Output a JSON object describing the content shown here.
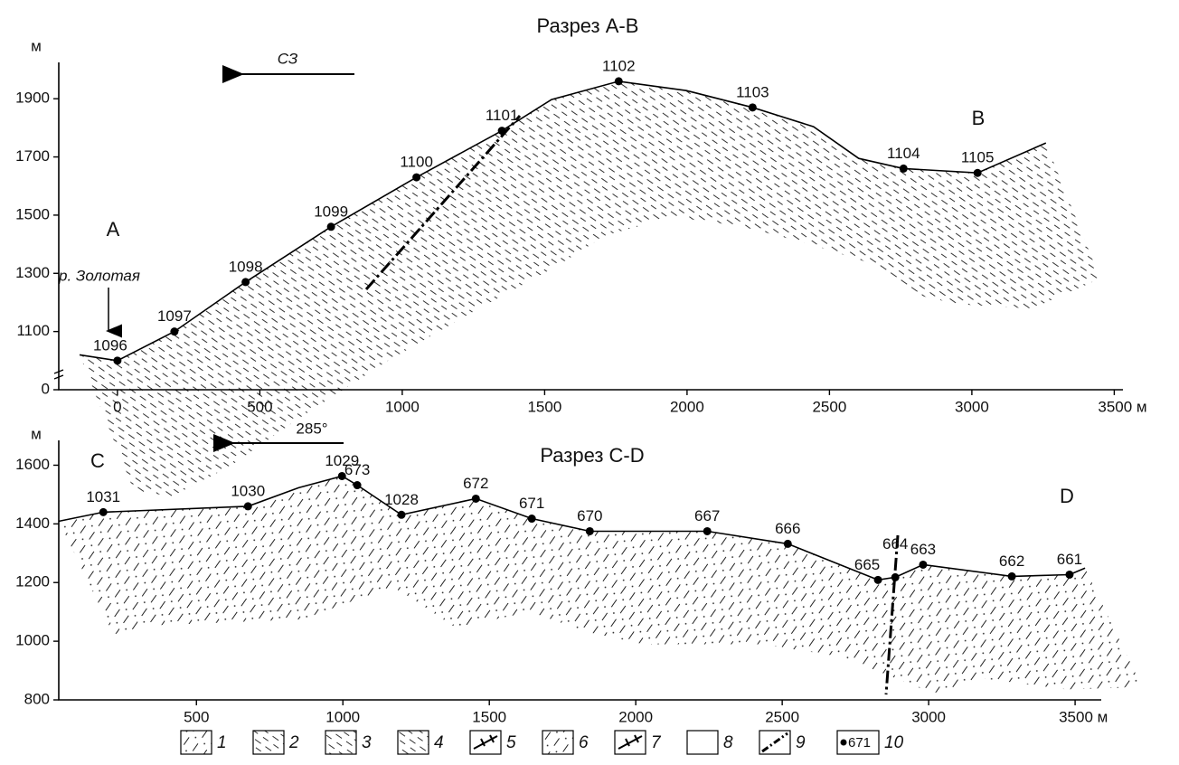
{
  "chart_data": [
    {
      "type": "line",
      "title": "Разрез А-В",
      "y_unit": "м",
      "direction_label": "СЗ",
      "end_labels": [
        "A",
        "B"
      ],
      "river_label": "р. Золотая",
      "color": "#000000",
      "x": [
        -133,
        0,
        200,
        450,
        750,
        1050,
        1350,
        1524,
        1760,
        1998,
        2230,
        2444,
        2603,
        2760,
        3020,
        3260
      ],
      "values": [
        1020,
        1000,
        1100,
        1270,
        1460,
        1630,
        1790,
        1897,
        1960,
        1928,
        1870,
        1804,
        1695,
        1660,
        1645,
        1748
      ],
      "point_labels": [
        null,
        "1096",
        "1097",
        "1098",
        "1099",
        "1100",
        "1101",
        null,
        "1102",
        null,
        "1103",
        null,
        null,
        "1104",
        "1105",
        null
      ],
      "xlim": [
        -206,
        3540
      ],
      "ylim": [
        900,
        2000
      ],
      "y_axis_break": true,
      "xticks": [
        0,
        500,
        1000,
        1500,
        2000,
        2500,
        3000,
        {
          "value": 3500,
          "label": "3500 м"
        }
      ],
      "yticks": [
        0,
        1100,
        1300,
        1500,
        1700,
        1900
      ]
    },
    {
      "type": "line",
      "title": "Разрез C-D",
      "y_unit": "м",
      "direction_label": "285°",
      "end_labels": [
        "C",
        "D"
      ],
      "color": "#000000",
      "x": [
        31,
        182,
        676,
        849,
        997,
        1049,
        1200,
        1454,
        1645,
        1843,
        2244,
        2519,
        2827,
        2886,
        2981,
        3284,
        3481,
        3534
      ],
      "values": [
        1409,
        1440,
        1460,
        1523,
        1563,
        1532,
        1431,
        1486,
        1418,
        1375,
        1375,
        1332,
        1209,
        1218,
        1261,
        1221,
        1227,
        1249
      ],
      "point_labels": [
        null,
        "1031",
        "1030",
        null,
        "1029",
        "673",
        "1028",
        "672",
        "671",
        "670",
        "667",
        "666",
        "665",
        "664",
        "663",
        "662",
        "661",
        null
      ],
      "xlim": [
        30,
        3580
      ],
      "ylim": [
        800,
        1660
      ],
      "xticks": [
        500,
        1000,
        1500,
        2000,
        2500,
        3000,
        {
          "value": 3500,
          "label": "3500 м"
        }
      ],
      "yticks": [
        800,
        1000,
        1200,
        1400,
        1600
      ]
    }
  ],
  "legend": {
    "items": [
      "1",
      "2",
      "3",
      "4",
      "5",
      "6",
      "7",
      "8",
      "9",
      "10"
    ],
    "sample_label": "671"
  }
}
